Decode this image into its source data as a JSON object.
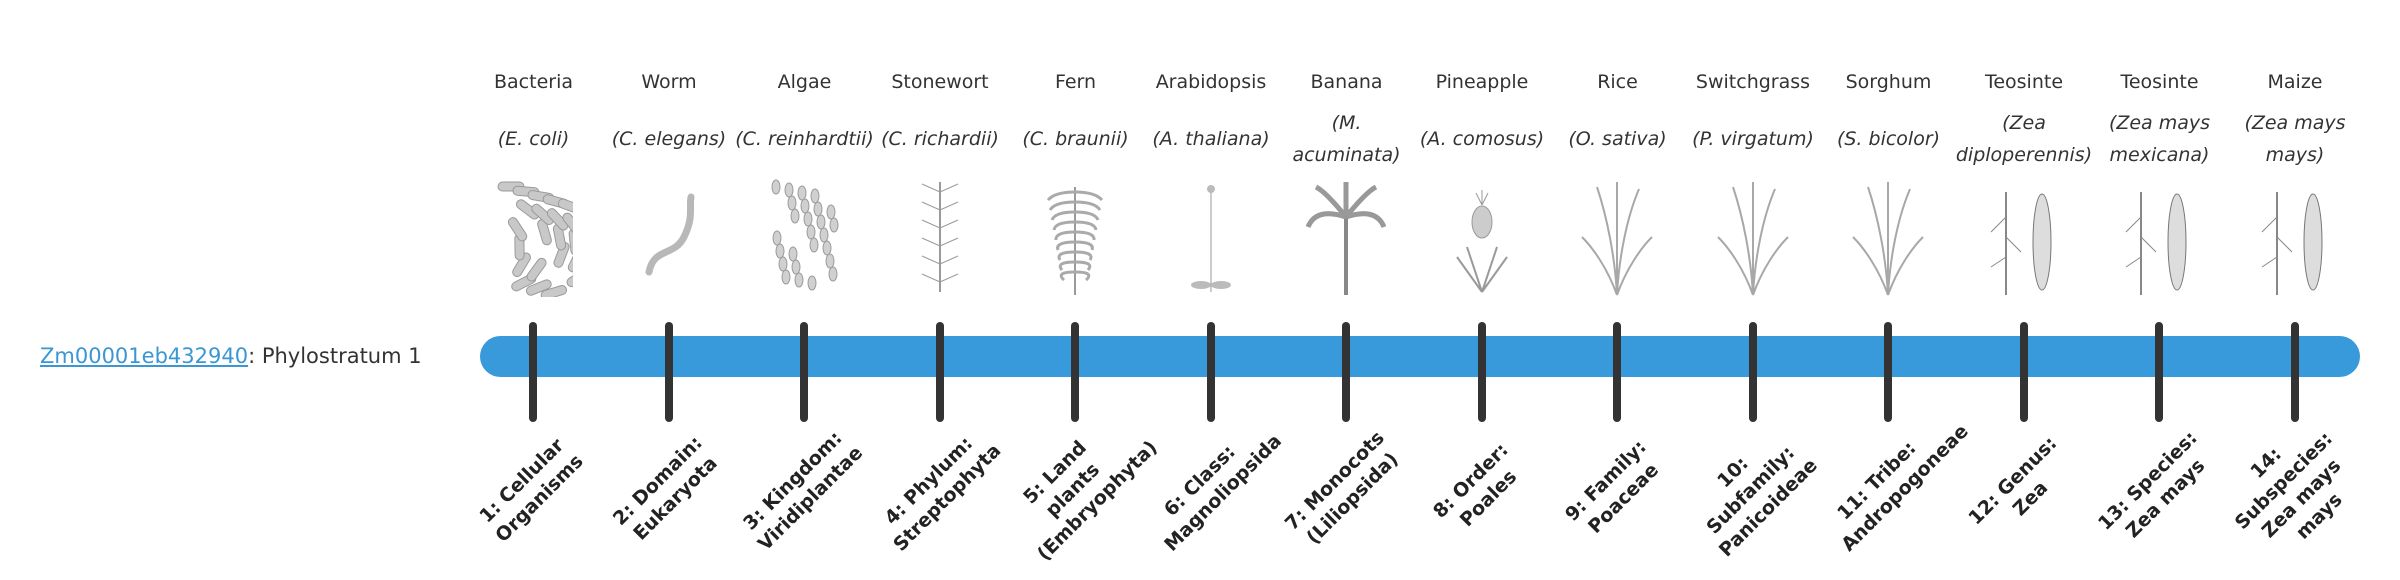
{
  "gene": {
    "id": "Zm00001eb432940",
    "separator": ":",
    "label": " Phylostratum 1"
  },
  "colors": {
    "bar": "#3899db",
    "tick": "#333333",
    "link": "#3a97d4"
  },
  "strata": [
    {
      "common": "Bacteria",
      "scientific": "(E. coli)",
      "label": "1: Cellular Organisms",
      "icon": "bacteria-icon"
    },
    {
      "common": "Worm",
      "scientific": "(C. elegans)",
      "label": "2: Domain: Eukaryota",
      "icon": "worm-icon"
    },
    {
      "common": "Algae",
      "scientific": "(C. reinhardtii)",
      "label": "3: Kingdom: Viridiplantae",
      "icon": "algae-icon"
    },
    {
      "common": "Stonewort",
      "scientific": "(C. richardii)",
      "label": "4: Phylum: Streptophyta",
      "icon": "stonewort-icon"
    },
    {
      "common": "Fern",
      "scientific": "(C. braunii)",
      "label": "5: Land plants (Embryophyta)",
      "icon": "fern-icon"
    },
    {
      "common": "Arabidopsis",
      "scientific": "(A. thaliana)",
      "label": "6: Class: Magnoliopsida",
      "icon": "arabidopsis-icon"
    },
    {
      "common": "Banana",
      "scientific": "(M. acuminata)",
      "label": "7: Monocots (Liliopsida)",
      "icon": "banana-icon"
    },
    {
      "common": "Pineapple",
      "scientific": "(A. comosus)",
      "label": "8: Order: Poales",
      "icon": "pineapple-icon"
    },
    {
      "common": "Rice",
      "scientific": "(O. sativa)",
      "label": "9: Family: Poaceae",
      "icon": "rice-icon"
    },
    {
      "common": "Switchgrass",
      "scientific": "(P. virgatum)",
      "label": "10: Subfamily: Panicoideae",
      "icon": "switchgrass-icon"
    },
    {
      "common": "Sorghum",
      "scientific": "(S. bicolor)",
      "label": "11: Tribe: Andropogoneae",
      "icon": "sorghum-icon"
    },
    {
      "common": "Teosinte",
      "scientific": "(Zea diploperennis)",
      "label": "12: Genus: Zea",
      "icon": "teosinte-icon"
    },
    {
      "common": "Teosinte",
      "scientific": "(Zea mays mexicana)",
      "label": "13: Species: Zea mays",
      "icon": "teosinte-mexicana-icon"
    },
    {
      "common": "Maize",
      "scientific": "(Zea mays mays)",
      "label": "14: Subspecies: Zea mays mays",
      "icon": "maize-icon"
    }
  ]
}
